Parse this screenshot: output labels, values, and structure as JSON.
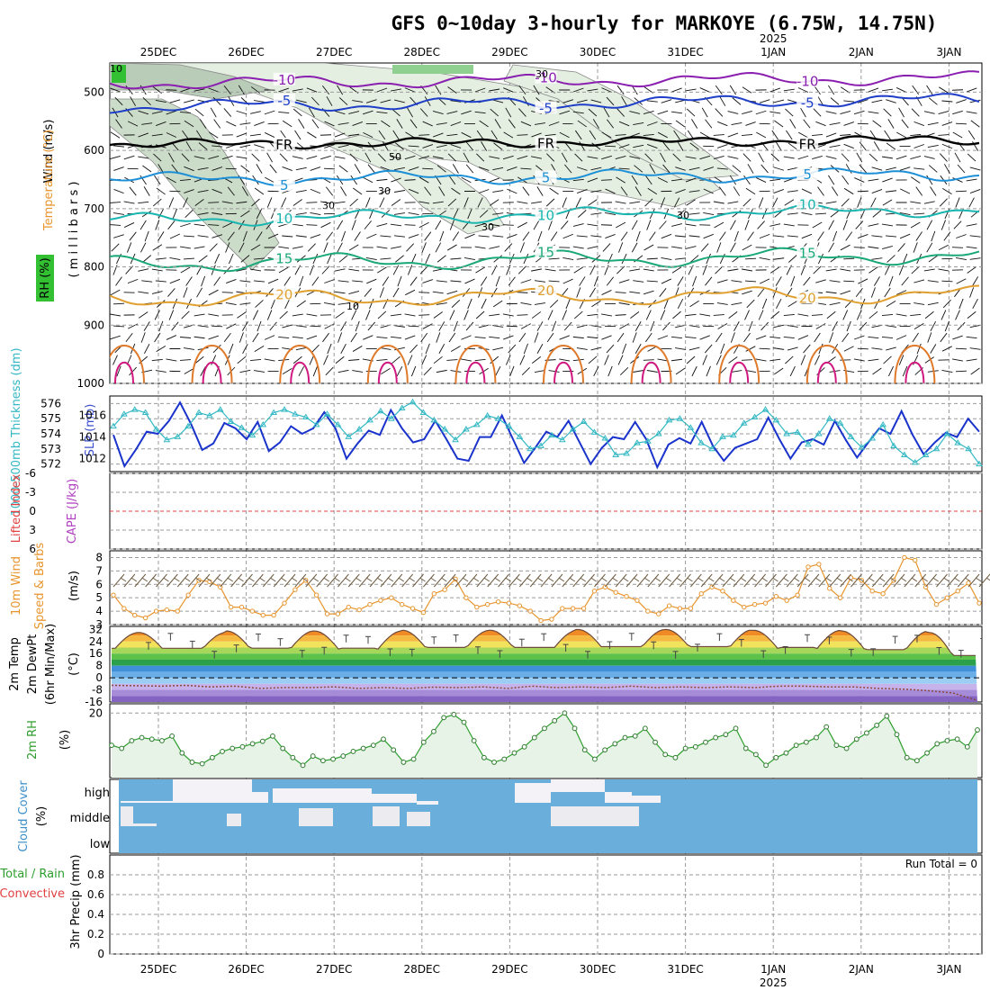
{
  "title": "GFS 0~10day 3-hourly for MARKOYE (6.75W, 14.75N)",
  "year_label": "2025",
  "date_labels": [
    "25DEC",
    "26DEC",
    "27DEC",
    "28DEC",
    "29DEC",
    "30DEC",
    "31DEC",
    "1JAN",
    "2JAN",
    "3JAN"
  ],
  "colors": {
    "grid": "#9a9a9a",
    "slp": "#1a33cc",
    "thickness": "#33b8c4",
    "lifted_zero": "#e04040",
    "wind10": "#e8952e",
    "rh2m": "#2e9e2e",
    "rh_fill": "#e8f3e8",
    "cloud_bg": "#6aaedb",
    "cloud": "#f4f2f7"
  },
  "chart_data": [
    {
      "type": "contour",
      "panel": "upper-air",
      "ylabel_wind": "Wind (m/s)",
      "ylabel_temp": "Temperature (°C)",
      "ylabel_rh": "RH (%)",
      "ylabel_pressure": "( m i l l i b a r s )",
      "pressure_ticks": [
        500,
        600,
        700,
        800,
        900,
        1000
      ],
      "ylim": [
        450,
        1000
      ],
      "isotherms": [
        {
          "label": "-10",
          "level": 485,
          "color": "#8a1fb0"
        },
        {
          "label": "-5",
          "level": 525,
          "color": "#1f3fc8"
        },
        {
          "label": "FR",
          "level": 590,
          "color": "#000000"
        },
        {
          "label": "5",
          "level": 650,
          "color": "#1c8fd6"
        },
        {
          "label": "10",
          "level": 720,
          "color": "#19b5b0"
        },
        {
          "label": "15",
          "level": 795,
          "color": "#1aa87a"
        },
        {
          "label": "20",
          "level": 855,
          "color": "#e0a030"
        }
      ],
      "rh_contour_labels": [
        "10",
        "30",
        "50",
        "30",
        "30",
        "30",
        "30",
        "10"
      ]
    },
    {
      "type": "line",
      "panel": "slp-thickness",
      "ylabel_left": "1000-500mb Thickness (dm)",
      "ylabel_right": "SLP (mb)",
      "left_ticks": [
        572,
        573,
        574,
        575,
        576
      ],
      "right_ticks": [
        1012,
        1014,
        1016
      ],
      "series": [
        {
          "name": "SLP",
          "axis": "right",
          "values": [
            1014.2,
            1011.3,
            1012.8,
            1014.5,
            1014.3,
            1015.5,
            1017.2,
            1015.2,
            1012.8,
            1013.4,
            1015.3,
            1014.8,
            1013.8,
            1015.4,
            1012.7,
            1013.5,
            1015.0,
            1014.3,
            1014.8,
            1016.3,
            1014.8,
            1012.0,
            1013.4,
            1014.6,
            1014.2,
            1016.5,
            1014.8,
            1013.5,
            1013.8,
            1015.5,
            1013.8,
            1012.0,
            1011.8,
            1014.0,
            1014.0,
            1016.0,
            1013.8,
            1011.6,
            1013.0,
            1014.5,
            1014.0,
            1015.5,
            1013.5,
            1011.5,
            1013.0,
            1014.0,
            1013.8,
            1015.4,
            1013.8,
            1011.2,
            1013.3,
            1013.9,
            1013.4,
            1015.4,
            1013.2,
            1011.8,
            1013.0,
            1013.4,
            1013.8,
            1015.8,
            1013.8,
            1012.0,
            1013.5,
            1013.8,
            1013.3,
            1015.5,
            1013.7,
            1012.1,
            1013.5,
            1014.8,
            1014.3,
            1016.4,
            1014.2,
            1012.4,
            1013.5,
            1014.4,
            1014.0,
            1015.7,
            1014.5
          ]
        },
        {
          "name": "Thickness",
          "axis": "left",
          "values": [
            574.5,
            575.3,
            575.6,
            575.4,
            574.3,
            573.6,
            573.8,
            574.5,
            575.4,
            575.2,
            575.6,
            574.8,
            574.4,
            573.9,
            574.6,
            575.4,
            575.6,
            575.3,
            575.1,
            574.6,
            575.3,
            574.6,
            573.8,
            574.3,
            574.9,
            575.5,
            575.0,
            575.7,
            576.1,
            575.4,
            574.9,
            574.3,
            573.6,
            574.3,
            574.6,
            575.2,
            575.0,
            574.5,
            573.8,
            573.0,
            573.2,
            573.9,
            573.6,
            574.3,
            574.8,
            574.1,
            573.7,
            572.6,
            572.7,
            573.4,
            573.5,
            574.0,
            574.9,
            575.0,
            574.4,
            573.4,
            573.0,
            573.8,
            573.9,
            574.7,
            575.1,
            575.6,
            574.9,
            574.0,
            574.1,
            573.3,
            574.0,
            575.0,
            574.7,
            573.8,
            573.1,
            573.7,
            574.6,
            573.2,
            572.6,
            572.1,
            572.6,
            573.0,
            574.0,
            573.4,
            573.0,
            572.0
          ]
        }
      ]
    },
    {
      "type": "line",
      "panel": "cape-li",
      "ylabel_left": "Lifted Index",
      "ylabel_right": "CAPE (J/kg)",
      "ticks": [
        -6,
        -3,
        0,
        3,
        6
      ],
      "tick_labels": [
        "-6",
        "-3",
        "0",
        "3",
        "6"
      ],
      "ylim": [
        6,
        -6
      ]
    },
    {
      "type": "line",
      "panel": "wind10m",
      "ylabel_left": "10m Wind",
      "ylabel_mid": "Speed & Barbs",
      "ylabel_unit": "(m/s)",
      "ticks": [
        3,
        4,
        5,
        6,
        7,
        8
      ],
      "ylim": [
        3,
        8.5
      ],
      "values": [
        5.2,
        4.2,
        3.7,
        3.5,
        4.0,
        4.1,
        4.0,
        5.2,
        6.3,
        6.2,
        5.8,
        4.3,
        4.3,
        4.0,
        3.7,
        3.7,
        4.6,
        5.6,
        6.3,
        5.2,
        3.8,
        3.8,
        4.3,
        4.1,
        4.5,
        4.8,
        5.0,
        4.5,
        4.2,
        3.9,
        5.3,
        5.6,
        6.4,
        5.0,
        4.3,
        4.5,
        4.7,
        4.6,
        4.4,
        4.0,
        3.3,
        3.4,
        4.2,
        4.2,
        4.2,
        5.5,
        5.8,
        5.4,
        5.1,
        4.8,
        4.0,
        3.8,
        4.4,
        4.2,
        4.2,
        5.3,
        5.8,
        5.5,
        4.8,
        4.3,
        4.5,
        4.6,
        5.1,
        4.8,
        5.2,
        7.3,
        7.5,
        5.7,
        5.0,
        6.5,
        6.3,
        5.5,
        5.3,
        6.3,
        8.0,
        7.8,
        5.8,
        4.5,
        5.0,
        5.5,
        6.1,
        4.6
      ]
    },
    {
      "type": "area",
      "panel": "temp2m",
      "ylabel_1": "2m Temp",
      "ylabel_2": "2m DewPt",
      "ylabel_3": "(6hr Min/Max)",
      "ylabel_unit": "(°C)",
      "ticks": [
        -16,
        -8,
        0,
        8,
        16,
        24,
        32
      ],
      "ylim": [
        -16,
        34
      ],
      "temp_daily_max": [
        30,
        31,
        31,
        31.5,
        31.5,
        32,
        32,
        31.5,
        31,
        30
      ],
      "temp_daily_min": [
        19,
        19,
        19,
        19.5,
        19.5,
        20,
        20,
        19.5,
        18,
        14
      ],
      "dewpoint": [
        -5.0,
        -5.2,
        -5.5,
        -5.0,
        -6.0,
        -5.5,
        -7.0,
        -6.5,
        -6.5,
        -6.0,
        -7.0,
        -6.5,
        -7.0,
        -6.2,
        -6.5,
        -6.0,
        -7.0,
        -5.5,
        -6.5,
        -6.0,
        -6.5,
        -5.5,
        -6.5,
        -6.0,
        -6.5,
        -6.0,
        -6.5,
        -5.5,
        -5.5,
        -6.0,
        -6.0,
        -7.0,
        -7.5,
        -8.5,
        -10.0,
        -15.0
      ]
    },
    {
      "type": "area",
      "panel": "rh2m",
      "ylabel": "2m RH",
      "ylabel_unit": "(%)",
      "ticks": [
        20
      ],
      "ylim": [
        -1,
        23
      ],
      "values": [
        9.5,
        8.5,
        11,
        12,
        11.5,
        11,
        12.5,
        7,
        4,
        3.5,
        5.5,
        7.5,
        8.5,
        9,
        10,
        10.8,
        12.5,
        8.5,
        5.5,
        3,
        6,
        4.5,
        5,
        6,
        7.5,
        8.5,
        9.5,
        11.5,
        8,
        4,
        5,
        10.5,
        14,
        18.5,
        19.5,
        17,
        11,
        5.5,
        4,
        5,
        7,
        9,
        12,
        15,
        17.5,
        20,
        15,
        8,
        5,
        8,
        10,
        12,
        12.5,
        15,
        10.5,
        6.5,
        5.5,
        8.5,
        9,
        10.5,
        12,
        13,
        15,
        8.5,
        6.5,
        3,
        5.5,
        7,
        9.5,
        10.5,
        12,
        15.5,
        9.5,
        8.5,
        11.5,
        13.5,
        16,
        19,
        13,
        5.5,
        4.5,
        7,
        10,
        11,
        11.5,
        9,
        14.5
      ]
    },
    {
      "type": "heatmap",
      "panel": "cloud",
      "ylabel": "Cloud Cover",
      "ylabel_unit": "(%)",
      "levels": [
        "high",
        "middle",
        "low"
      ]
    },
    {
      "type": "bar",
      "panel": "precip",
      "ylabel_left": "Total / Rain",
      "ylabel_left2": "Convective",
      "ylabel_main": "3hr Precip (mm)",
      "ticks": [
        0,
        0.2,
        0.4,
        0.6,
        0.8
      ],
      "tick_labels": [
        "0",
        "0.2",
        "0.4",
        "0.6",
        "0.8"
      ],
      "ylim": [
        0,
        1
      ],
      "run_total_label": "Run Total = 0",
      "values": []
    }
  ]
}
